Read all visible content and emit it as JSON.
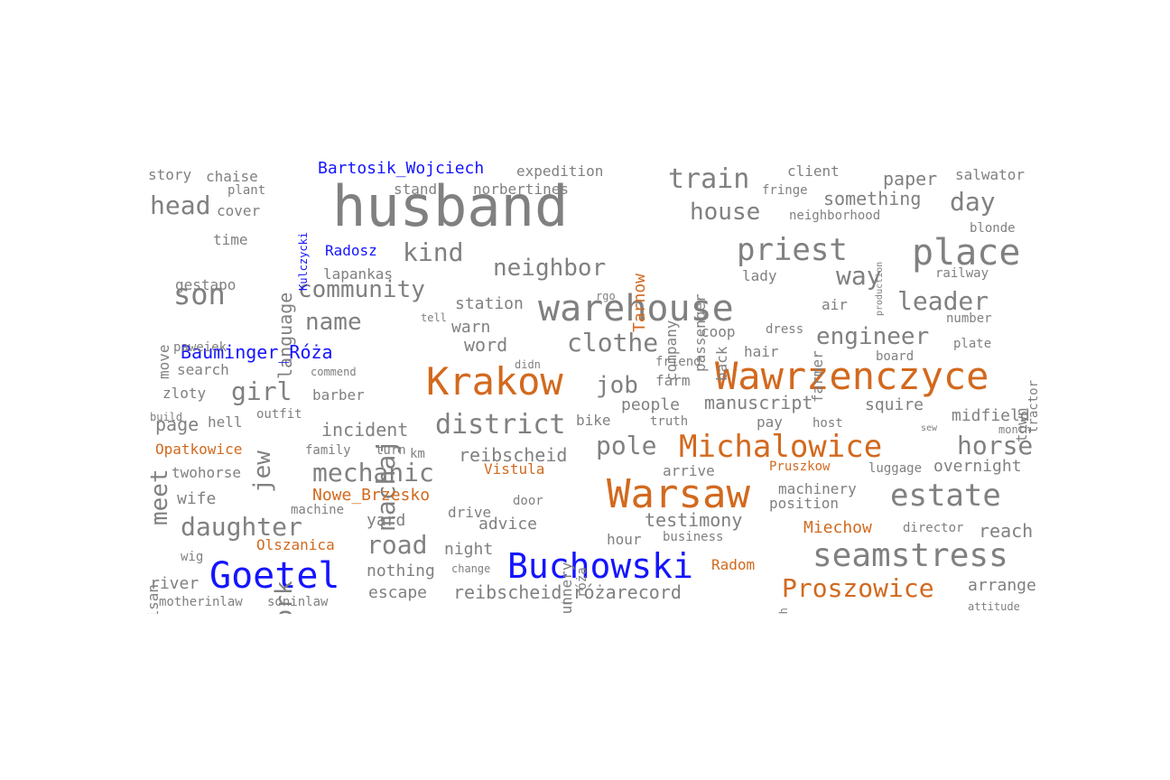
{
  "colors": {
    "common": "#808080",
    "place": "#d2691e",
    "person": "#1414ff"
  },
  "words": [
    {
      "text": "husband",
      "cat": "common"
    },
    {
      "text": "Krakow",
      "cat": "place"
    },
    {
      "text": "Warsaw",
      "cat": "place"
    },
    {
      "text": "Wawrzenczyce",
      "cat": "place"
    },
    {
      "text": "Buchowski",
      "cat": "person"
    },
    {
      "text": "Goetel",
      "cat": "person"
    },
    {
      "text": "warehouse",
      "cat": "common"
    },
    {
      "text": "place",
      "cat": "common"
    },
    {
      "text": "priest",
      "cat": "common"
    },
    {
      "text": "Michalowice",
      "cat": "place"
    },
    {
      "text": "seamstress",
      "cat": "common"
    },
    {
      "text": "estate",
      "cat": "common"
    },
    {
      "text": "Proszowice",
      "cat": "place"
    },
    {
      "text": "district",
      "cat": "common"
    },
    {
      "text": "son",
      "cat": "common"
    },
    {
      "text": "neighbor",
      "cat": "common"
    },
    {
      "text": "train",
      "cat": "common"
    },
    {
      "text": "house",
      "cat": "common"
    },
    {
      "text": "clothe",
      "cat": "common"
    },
    {
      "text": "pole",
      "cat": "common"
    },
    {
      "text": "horse",
      "cat": "common"
    },
    {
      "text": "daughter",
      "cat": "common"
    },
    {
      "text": "mechanic",
      "cat": "common"
    },
    {
      "text": "job",
      "cat": "common"
    },
    {
      "text": "road",
      "cat": "common"
    },
    {
      "text": "engineer",
      "cat": "common"
    },
    {
      "text": "leader",
      "cat": "common"
    },
    {
      "text": "way",
      "cat": "common"
    },
    {
      "text": "day",
      "cat": "common"
    },
    {
      "text": "community",
      "cat": "common"
    },
    {
      "text": "kind",
      "cat": "common"
    },
    {
      "text": "name",
      "cat": "common"
    },
    {
      "text": "girl",
      "cat": "common"
    },
    {
      "text": "head",
      "cat": "common"
    },
    {
      "text": "machaj",
      "cat": "common"
    },
    {
      "text": "work",
      "cat": "common"
    },
    {
      "text": "meet",
      "cat": "common"
    },
    {
      "text": "jew",
      "cat": "common"
    },
    {
      "text": "language",
      "cat": "common"
    },
    {
      "text": "reibscheid",
      "cat": "common"
    },
    {
      "text": "reibscheid_różarecord",
      "cat": "common"
    },
    {
      "text": "incident",
      "cat": "common"
    },
    {
      "text": "testimony",
      "cat": "common"
    },
    {
      "text": "manuscript",
      "cat": "common"
    },
    {
      "text": "something",
      "cat": "common"
    },
    {
      "text": "paper",
      "cat": "common"
    },
    {
      "text": "Bauminger_Róża",
      "cat": "person"
    },
    {
      "text": "Bartosik_Wojciech",
      "cat": "person"
    },
    {
      "text": "Radosz",
      "cat": "person"
    },
    {
      "text": "Kulczycki",
      "cat": "person"
    },
    {
      "text": "Nowe_Brzesko",
      "cat": "place"
    },
    {
      "text": "Miechow",
      "cat": "place"
    },
    {
      "text": "Tarnow",
      "cat": "place"
    },
    {
      "text": "Opatkowice",
      "cat": "place"
    },
    {
      "text": "Olszanica",
      "cat": "place"
    },
    {
      "text": "Vistula",
      "cat": "place"
    },
    {
      "text": "Radom",
      "cat": "place"
    },
    {
      "text": "Pruszkow",
      "cat": "place"
    },
    {
      "text": "word",
      "cat": "common"
    },
    {
      "text": "page",
      "cat": "common"
    },
    {
      "text": "advice",
      "cat": "common"
    },
    {
      "text": "wife",
      "cat": "common"
    },
    {
      "text": "yard",
      "cat": "common"
    },
    {
      "text": "warn",
      "cat": "common"
    },
    {
      "text": "station",
      "cat": "common"
    },
    {
      "text": "reach",
      "cat": "common"
    },
    {
      "text": "arrange",
      "cat": "common"
    },
    {
      "text": "midfield",
      "cat": "common"
    },
    {
      "text": "overnight",
      "cat": "common"
    },
    {
      "text": "squire",
      "cat": "common"
    },
    {
      "text": "people",
      "cat": "common"
    },
    {
      "text": "machinery",
      "cat": "common"
    },
    {
      "text": "position",
      "cat": "common"
    },
    {
      "text": "hour",
      "cat": "common"
    },
    {
      "text": "night",
      "cat": "common"
    },
    {
      "text": "nothing",
      "cat": "common"
    },
    {
      "text": "escape",
      "cat": "common"
    },
    {
      "text": "river",
      "cat": "common"
    },
    {
      "text": "barber",
      "cat": "common"
    },
    {
      "text": "search",
      "cat": "common"
    },
    {
      "text": "zloty",
      "cat": "common"
    },
    {
      "text": "hell",
      "cat": "common"
    },
    {
      "text": "twohorse",
      "cat": "common"
    },
    {
      "text": "gestapo",
      "cat": "common"
    },
    {
      "text": "time",
      "cat": "common"
    },
    {
      "text": "cover",
      "cat": "common"
    },
    {
      "text": "chaise",
      "cat": "common"
    },
    {
      "text": "story",
      "cat": "common"
    },
    {
      "text": "plant",
      "cat": "common"
    },
    {
      "text": "stand",
      "cat": "common"
    },
    {
      "text": "norbertines",
      "cat": "common"
    },
    {
      "text": "expedition",
      "cat": "common"
    },
    {
      "text": "client",
      "cat": "common"
    },
    {
      "text": "fringe",
      "cat": "common"
    },
    {
      "text": "salwator",
      "cat": "common"
    },
    {
      "text": "neighborhood",
      "cat": "common"
    },
    {
      "text": "blonde",
      "cat": "common"
    },
    {
      "text": "railway",
      "cat": "common"
    },
    {
      "text": "lady",
      "cat": "common"
    },
    {
      "text": "air",
      "cat": "common"
    },
    {
      "text": "number",
      "cat": "common"
    },
    {
      "text": "plate",
      "cat": "common"
    },
    {
      "text": "board",
      "cat": "common"
    },
    {
      "text": "dress",
      "cat": "common"
    },
    {
      "text": "coop",
      "cat": "common"
    },
    {
      "text": "hair",
      "cat": "common"
    },
    {
      "text": "friend",
      "cat": "common"
    },
    {
      "text": "farm",
      "cat": "common"
    },
    {
      "text": "bike",
      "cat": "common"
    },
    {
      "text": "truth",
      "cat": "common"
    },
    {
      "text": "pay",
      "cat": "common"
    },
    {
      "text": "host",
      "cat": "common"
    },
    {
      "text": "month",
      "cat": "common"
    },
    {
      "text": "luggage",
      "cat": "common"
    },
    {
      "text": "arrive",
      "cat": "common"
    },
    {
      "text": "door",
      "cat": "common"
    },
    {
      "text": "drive",
      "cat": "common"
    },
    {
      "text": "machine",
      "cat": "common"
    },
    {
      "text": "change",
      "cat": "common"
    },
    {
      "text": "business",
      "cat": "common"
    },
    {
      "text": "director",
      "cat": "common"
    },
    {
      "text": "attitude",
      "cat": "common"
    },
    {
      "text": "motherinlaw",
      "cat": "common"
    },
    {
      "text": "soninlaw",
      "cat": "common"
    },
    {
      "text": "wig",
      "cat": "common"
    },
    {
      "text": "build",
      "cat": "common"
    },
    {
      "text": "outfit",
      "cat": "common"
    },
    {
      "text": "family",
      "cat": "common"
    },
    {
      "text": "turn",
      "cat": "common"
    },
    {
      "text": "km",
      "cat": "common"
    },
    {
      "text": "didn",
      "cat": "common"
    },
    {
      "text": "commend",
      "cat": "common"
    },
    {
      "text": "paweiek",
      "cat": "common"
    },
    {
      "text": "lapankas",
      "cat": "common"
    },
    {
      "text": "tell",
      "cat": "common"
    },
    {
      "text": "rgo",
      "cat": "common"
    },
    {
      "text": "move",
      "cat": "common"
    },
    {
      "text": "partisan",
      "cat": "common"
    },
    {
      "text": "nunnery",
      "cat": "common"
    },
    {
      "text": "róża",
      "cat": "common"
    },
    {
      "text": "bush",
      "cat": "common"
    },
    {
      "text": "company",
      "cat": "common"
    },
    {
      "text": "passenger",
      "cat": "common"
    },
    {
      "text": "back",
      "cat": "common"
    },
    {
      "text": "farmer",
      "cat": "common"
    },
    {
      "text": "town",
      "cat": "common"
    },
    {
      "text": "tractor",
      "cat": "common"
    },
    {
      "text": "production",
      "cat": "common"
    },
    {
      "text": "sew",
      "cat": "common"
    },
    {
      "text": "une",
      "cat": "common"
    }
  ]
}
